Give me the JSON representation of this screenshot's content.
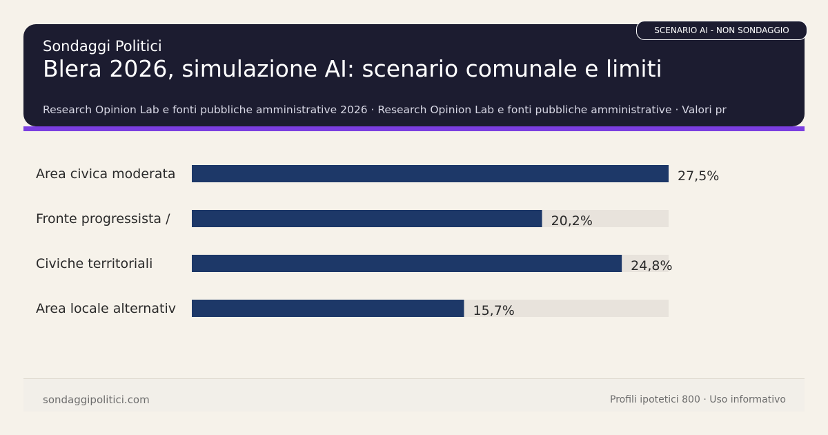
{
  "header": {
    "brand": "Sondaggi Politici",
    "title": "Blera 2026, simulazione AI: scenario comunale e limiti",
    "subtitle": "Research Opinion Lab e fonti pubbliche amministrative 2026 · Research Opinion Lab e fonti pubbliche amministrative · Valori pr",
    "badge": "SCENARIO AI - NON SONDAGGIO"
  },
  "colors": {
    "bar": "#1d3868",
    "track": "#e8e3dc",
    "header_bg": "#1c1c30",
    "accent": "#7b3ee0"
  },
  "chart_data": {
    "type": "bar",
    "orientation": "horizontal",
    "categories": [
      "Area civica moderata",
      "Fronte progressista /",
      "Civiche territoriali",
      "Area locale alternativ"
    ],
    "values": [
      27.5,
      20.2,
      24.8,
      15.7
    ],
    "value_labels": [
      "27,5%",
      "20,2%",
      "24,8%",
      "15,7%"
    ],
    "xlim": [
      0,
      27.5
    ],
    "grid": false
  },
  "footer": {
    "left": "sondaggipolitici.com",
    "right": "Profili ipotetici 800 · Uso informativo"
  }
}
